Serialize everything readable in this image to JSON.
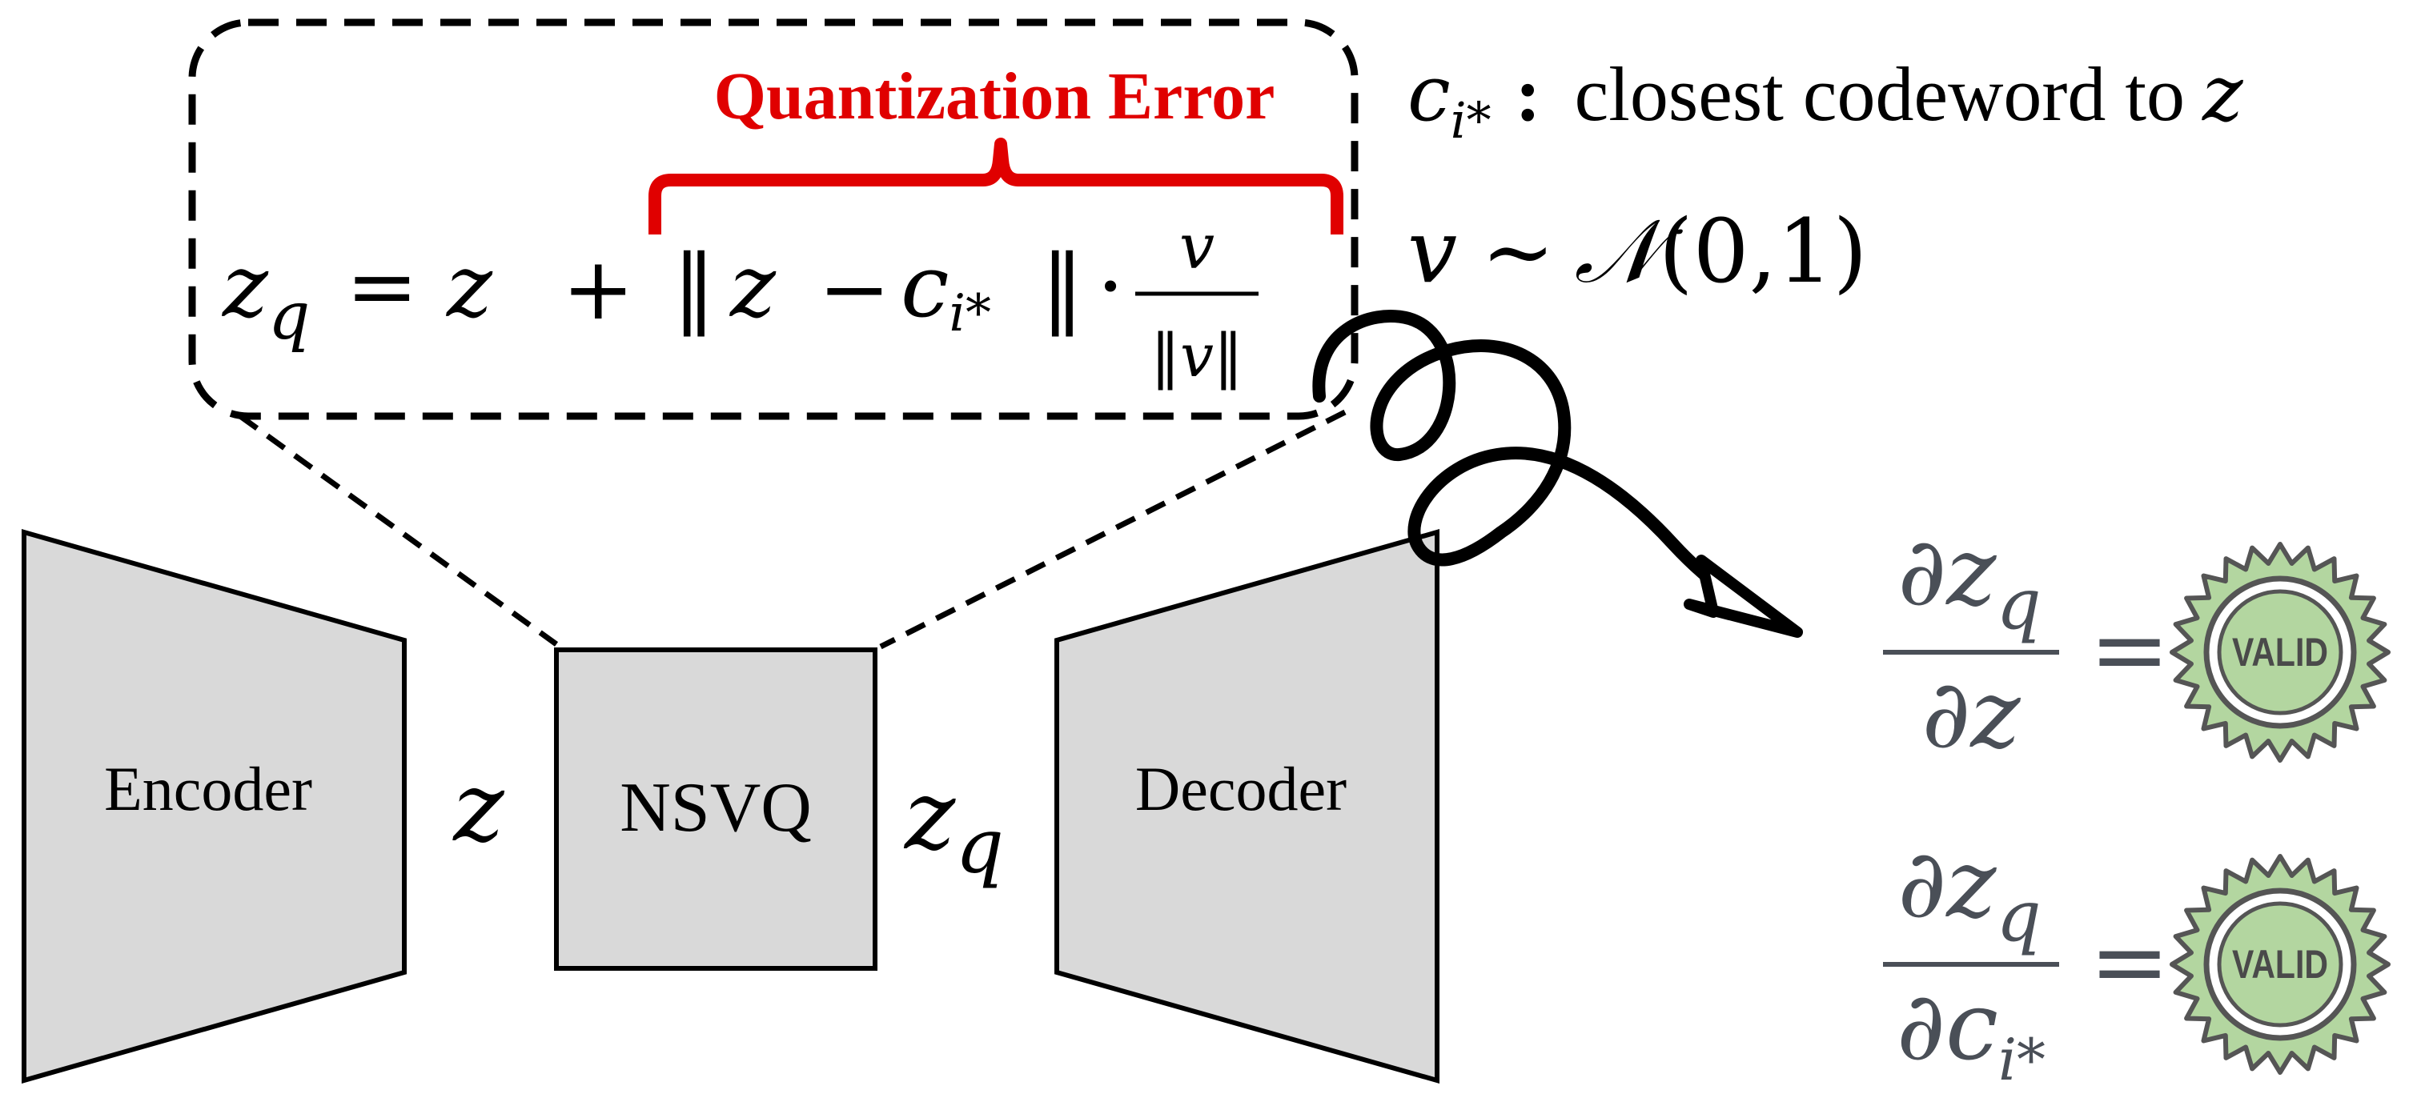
{
  "blocks": {
    "encoder": "Encoder",
    "nsvq": "NSVQ",
    "decoder": "Decoder"
  },
  "variables": {
    "z": "z",
    "zq_base": "z",
    "zq_sub": "q"
  },
  "formula": {
    "lhs_base": "z",
    "lhs_sub": "q",
    "equals": "=",
    "z": "z",
    "plus": "+",
    "norm_open": "‖",
    "z_in_norm": "z",
    "minus": "−",
    "c_base": "c",
    "c_sub": "i*",
    "norm_close": "‖",
    "dot": "·",
    "frac_num": "v",
    "frac_den": "‖v‖"
  },
  "quantization_error_label": "Quantization Error",
  "definitions": {
    "c_base": "c",
    "c_sub": "i*",
    "colon": ":",
    "c_text": "closest codeword to",
    "c_var": "z",
    "v_base": "v",
    "v_sim": "~",
    "v_dist": "𝒩",
    "v_args": "(0,1)"
  },
  "gradients": [
    {
      "num_base": "∂z",
      "num_sub": "q",
      "den_base": "∂z",
      "den_sub": "",
      "equals": "=",
      "badge": "VALID"
    },
    {
      "num_base": "∂z",
      "num_sub": "q",
      "den_base": "∂c",
      "den_sub": "i*",
      "equals": "=",
      "badge": "VALID"
    }
  ],
  "colors": {
    "block_fill": "#d9d9d9",
    "stroke": "#000000",
    "highlight": "#e00000",
    "gradient_text": "#4a4f57",
    "badge_fill": "#b3d6a0",
    "badge_stroke": "#555555"
  }
}
